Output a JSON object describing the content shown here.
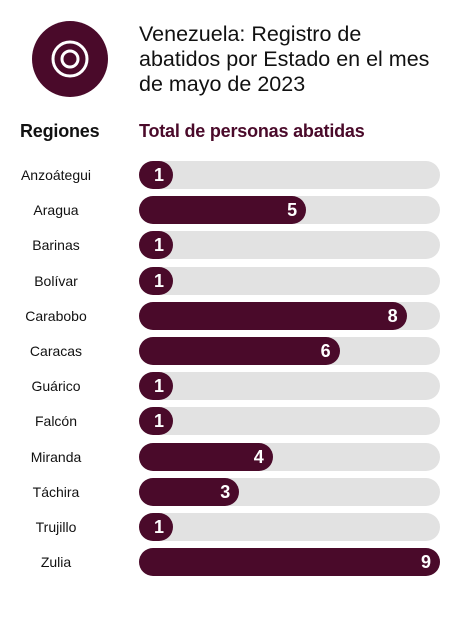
{
  "header": {
    "title": "Venezuela: Registro de abatidos por Estado en el mes de mayo de 2023",
    "regions_heading": "Regiones",
    "total_heading": "Total de personas abatidas"
  },
  "colors": {
    "accent": "#4a0a2a",
    "track": "#e2e2e2",
    "logo": "#4a0a2a"
  },
  "icons": {
    "logo": "target-circle-icon"
  },
  "chart_data": {
    "type": "bar",
    "orientation": "horizontal",
    "xlabel": "Total de personas abatidas",
    "ylabel": "Regiones",
    "xlim": [
      0,
      9
    ],
    "grid": false,
    "categories": [
      "Anzoátegui",
      "Aragua",
      "Barinas",
      "Bolívar",
      "Carabobo",
      "Caracas",
      "Guárico",
      "Falcón",
      "Miranda",
      "Táchira",
      "Trujillo",
      "Zulia"
    ],
    "values": [
      1,
      5,
      1,
      1,
      8,
      6,
      1,
      1,
      4,
      3,
      1,
      9
    ]
  }
}
